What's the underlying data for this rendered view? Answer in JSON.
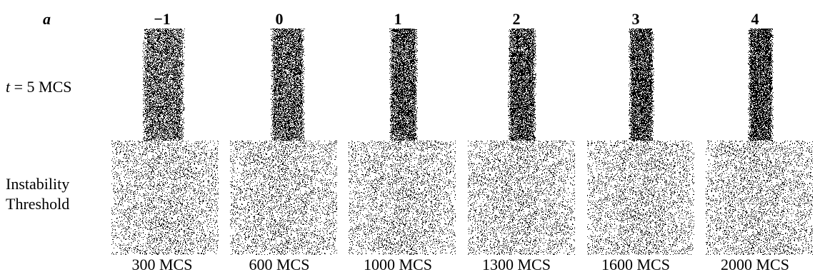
{
  "figure": {
    "param_symbol": "a",
    "row1_label": {
      "var": "t",
      "rest": " = 5 MCS"
    },
    "row2_label": {
      "line1": "Instability",
      "line2": "Threshold"
    },
    "columns": [
      {
        "a_value": "−1",
        "threshold_time": "300 MCS"
      },
      {
        "a_value": "0",
        "threshold_time": "600 MCS"
      },
      {
        "a_value": "1",
        "threshold_time": "1000 MCS"
      },
      {
        "a_value": "2",
        "threshold_time": "1300 MCS"
      },
      {
        "a_value": "3",
        "threshold_time": "1600 MCS"
      },
      {
        "a_value": "4",
        "threshold_time": "2000 MCS"
      }
    ]
  }
}
